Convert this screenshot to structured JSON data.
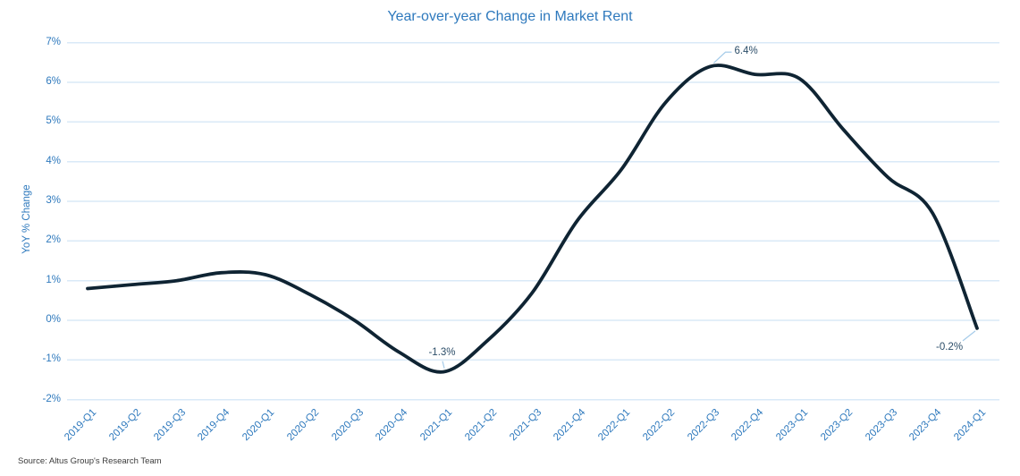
{
  "chart_data": {
    "type": "line",
    "title": "Year-over-year Change in Market Rent",
    "xlabel": "",
    "ylabel": "YoY % Change",
    "categories": [
      "2019-Q1",
      "2019-Q2",
      "2019-Q3",
      "2019-Q4",
      "2020-Q1",
      "2020-Q2",
      "2020-Q3",
      "2020-Q4",
      "2021-Q1",
      "2021-Q2",
      "2021-Q3",
      "2021-Q4",
      "2022-Q1",
      "2022-Q2",
      "2022-Q3",
      "2022-Q4",
      "2023-Q1",
      "2023-Q2",
      "2023-Q3",
      "2023-Q4",
      "2024-Q1"
    ],
    "series": [
      {
        "name": "YoY % change in market rent",
        "values": [
          0.8,
          0.9,
          1.0,
          1.2,
          1.15,
          0.65,
          0.0,
          -0.8,
          -1.3,
          -0.5,
          0.7,
          2.5,
          3.8,
          5.5,
          6.4,
          6.2,
          6.1,
          4.8,
          3.6,
          2.7,
          -0.2
        ]
      }
    ],
    "ylim": [
      -2,
      7
    ],
    "ytick_labels": [
      "7%",
      "6%",
      "5%",
      "4%",
      "3%",
      "2%",
      "1%",
      "0%",
      "-1%",
      "-2%"
    ],
    "grid": "horizontal",
    "legend": "none",
    "line_smoothing": "spline",
    "annotations": [
      {
        "label": "6.4%",
        "category": "2022-Q3",
        "index": 14,
        "value": 6.4,
        "placement": "above-right"
      },
      {
        "label": "-1.3%",
        "category": "2021-Q1",
        "index": 8,
        "value": -1.3,
        "placement": "above"
      },
      {
        "label": "-0.2%",
        "category": "2024-Q1",
        "index": 20,
        "value": -0.2,
        "placement": "below-left"
      }
    ]
  },
  "source": "Source: Altus Group's Research Team",
  "colors": {
    "title_text": "#2e79bd",
    "axis_text": "#2e79bd",
    "line": "#0f2433",
    "grid": "#daeaf7",
    "annotation_text": "#2b4d68",
    "leader_line": "#a5cbe9",
    "source_text": "#3a3a3a",
    "background": "#ffffff"
  }
}
